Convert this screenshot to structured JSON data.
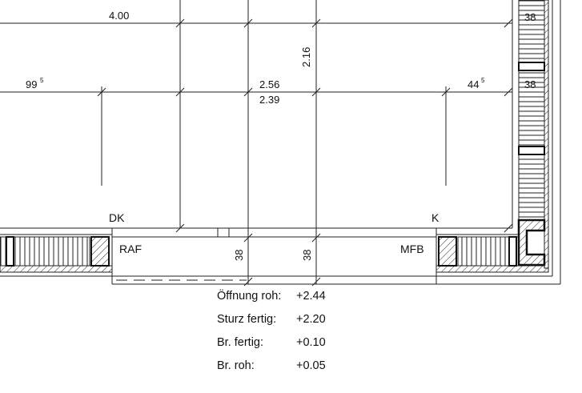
{
  "dimensions": {
    "d_400": "4.00",
    "d_99": "99",
    "d_99_sup": "5",
    "d_216": "2.16",
    "d_256": "2.56",
    "d_239": "2.39",
    "d_44": "44",
    "d_44_sup": "5",
    "d_38_top1": "38",
    "d_38_top2": "38",
    "d_38_left": "38",
    "d_38_right": "38"
  },
  "labels": {
    "dk": "DK",
    "k": "K",
    "raf": "RAF",
    "mfb": "MFB"
  },
  "opening_info": [
    {
      "label": "Öffnung roh:",
      "value": "+2.44"
    },
    {
      "label": "Sturz fertig:",
      "value": "+2.20"
    },
    {
      "label": "Br. fertig:",
      "value": "+0.10"
    },
    {
      "label": "Br. roh:",
      "value": "+0.05"
    }
  ]
}
